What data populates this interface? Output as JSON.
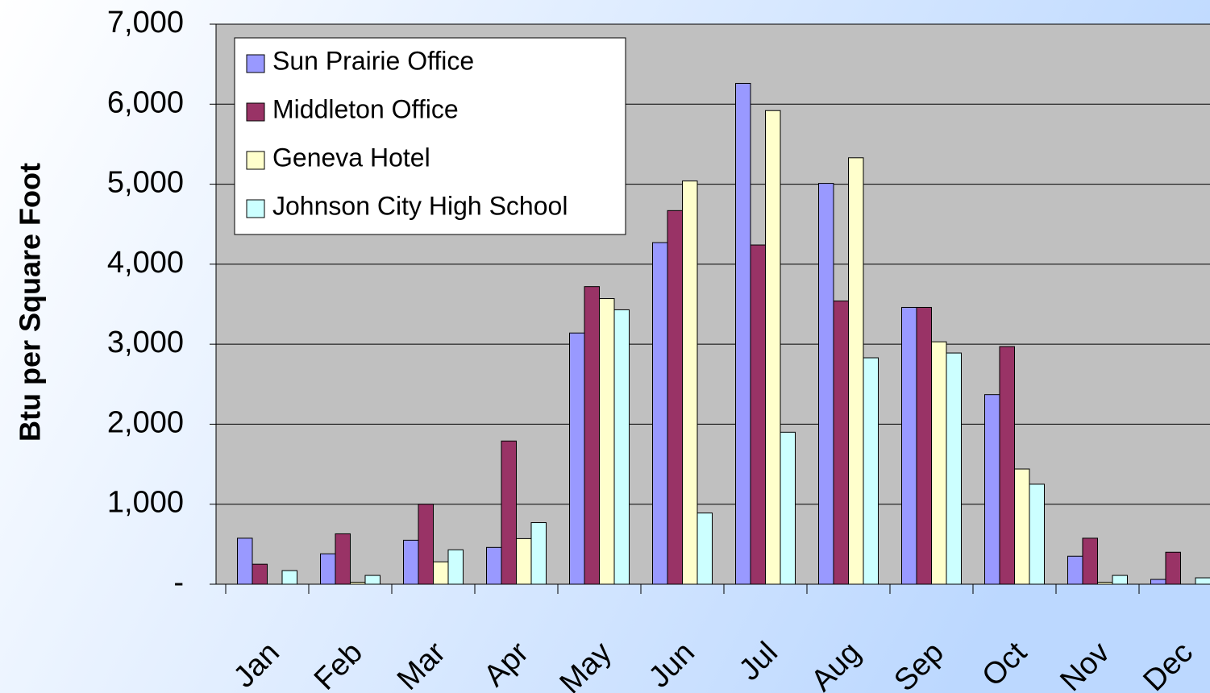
{
  "chart_data": {
    "type": "bar",
    "y_label": "Btu per Square Foot",
    "categories": [
      "Jan",
      "Feb",
      "Mar",
      "Apr",
      "May",
      "Jun",
      "Jul",
      "Aug",
      "Sep",
      "Oct",
      "Nov",
      "Dec"
    ],
    "series": [
      {
        "name": "Sun Prairie Office",
        "color": "#9999ff",
        "values": [
          575,
          380,
          550,
          460,
          3140,
          4270,
          6260,
          5010,
          3460,
          2370,
          350,
          60
        ]
      },
      {
        "name": "Middleton Office",
        "color": "#993366",
        "values": [
          250,
          630,
          1000,
          1790,
          3720,
          4670,
          4240,
          3540,
          3460,
          2970,
          575,
          400
        ]
      },
      {
        "name": "Geneva Hotel",
        "color": "#ffffcc",
        "values": [
          0,
          25,
          280,
          570,
          3570,
          5040,
          5920,
          5330,
          3030,
          1440,
          25,
          0
        ]
      },
      {
        "name": "Johnson City High School",
        "color": "#ccffff",
        "values": [
          170,
          110,
          430,
          770,
          3430,
          890,
          1900,
          2830,
          2890,
          1250,
          110,
          80
        ]
      }
    ],
    "ylim": [
      0,
      7000
    ],
    "yticks": [
      {
        "value": 0,
        "label": "-"
      },
      {
        "value": 1000,
        "label": "1,000"
      },
      {
        "value": 2000,
        "label": "2,000"
      },
      {
        "value": 3000,
        "label": "3,000"
      },
      {
        "value": 4000,
        "label": "4,000"
      },
      {
        "value": 5000,
        "label": "5,000"
      },
      {
        "value": 6000,
        "label": "6,000"
      },
      {
        "value": 7000,
        "label": "7,000"
      }
    ],
    "grid": true,
    "legend": "upper left"
  }
}
